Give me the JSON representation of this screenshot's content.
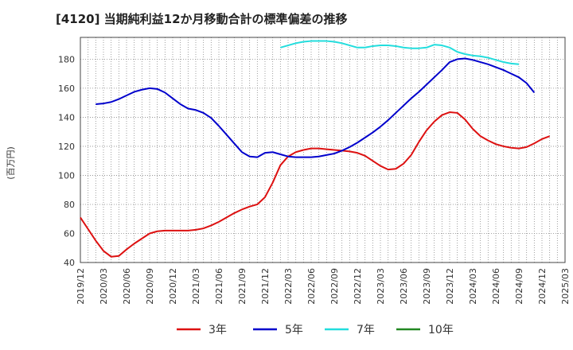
{
  "chart_data": {
    "type": "line",
    "title": "[4120]  当期純利益12か月移動合計の標準偏差の推移",
    "ylabel": "(百万円)",
    "xlabel": "",
    "ylim": [
      40,
      195
    ],
    "yticks": [
      40,
      60,
      80,
      100,
      120,
      140,
      160,
      180
    ],
    "grid": true,
    "x_start": "2019-12",
    "x_end": "2025-03",
    "xticks": [
      "2019/12",
      "2020/03",
      "2020/06",
      "2020/09",
      "2020/12",
      "2021/03",
      "2021/06",
      "2021/09",
      "2021/12",
      "2022/03",
      "2022/06",
      "2022/09",
      "2022/12",
      "2023/03",
      "2023/06",
      "2023/09",
      "2023/12",
      "2024/03",
      "2024/06",
      "2024/09",
      "2024/12",
      "2025/03"
    ],
    "legend_position": "bottom",
    "series": [
      {
        "name": "3年",
        "color": "#dd1111",
        "start": "2019-12",
        "values": [
          71,
          63,
          55,
          48,
          44,
          44.5,
          49,
          53,
          56.5,
          60,
          61.5,
          62,
          62,
          62,
          62,
          62.5,
          63.5,
          65.5,
          68,
          71,
          74,
          76.5,
          78.5,
          80,
          85,
          95,
          107,
          113,
          116,
          117.5,
          118.5,
          118.5,
          118,
          117.5,
          117,
          116.5,
          115.5,
          113.5,
          110,
          106.5,
          104,
          104.5,
          108,
          114,
          123,
          131,
          137,
          141.5,
          143.5,
          143,
          138.5,
          132,
          127,
          124,
          121.5,
          120,
          119,
          118.5,
          119.5,
          122,
          125,
          127
        ]
      },
      {
        "name": "5年",
        "color": "#0000cc",
        "start": "2020-02",
        "values": [
          149,
          149.5,
          150.5,
          152.5,
          155,
          157.5,
          159,
          160,
          159.5,
          157,
          153,
          149,
          146,
          145,
          143,
          139.5,
          134,
          128,
          122,
          116,
          113,
          112.5,
          115.5,
          116,
          114.5,
          113,
          112.5,
          112.5,
          112.5,
          113,
          114,
          115,
          117,
          119.5,
          122.5,
          126,
          129.5,
          133.5,
          138,
          143,
          148,
          153,
          157.5,
          162.5,
          167.5,
          172.5,
          178,
          180,
          180.5,
          179.5,
          178,
          176.5,
          174.5,
          172.5,
          170,
          167.5,
          163.5,
          157
        ]
      },
      {
        "name": "7年",
        "color": "#22dddd",
        "start": "2022-02",
        "values": [
          188,
          189.5,
          191,
          192,
          192.5,
          192.5,
          192.5,
          192,
          191,
          189.5,
          188,
          188,
          189,
          189.5,
          189.5,
          189,
          188,
          187.5,
          187.5,
          188,
          190,
          189.5,
          188,
          185,
          183.5,
          182.5,
          182,
          181,
          179.5,
          178,
          177,
          176.5
        ]
      },
      {
        "name": "10年",
        "color": "#228822",
        "start": "2019-12",
        "values": []
      }
    ]
  }
}
